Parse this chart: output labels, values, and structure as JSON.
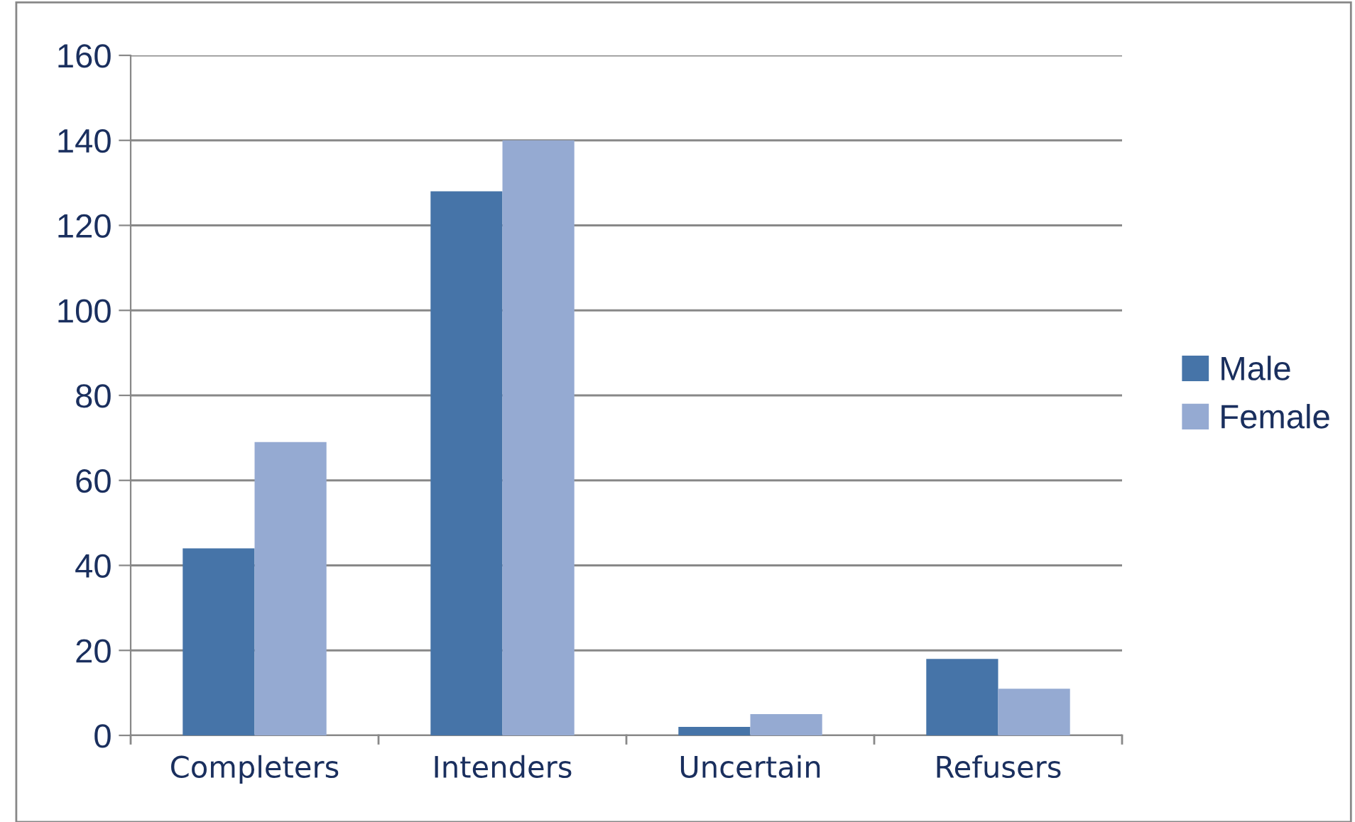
{
  "chart_data": {
    "type": "bar",
    "categories": [
      "Completers",
      "Intenders",
      "Uncertain",
      "Refusers"
    ],
    "series": [
      {
        "name": "Male",
        "color": "#4674a8",
        "values": [
          44,
          128,
          2,
          18
        ]
      },
      {
        "name": "Female",
        "color": "#95aad2",
        "values": [
          69,
          140,
          5,
          11
        ]
      }
    ],
    "ylim": [
      0,
      160
    ],
    "yticks": [
      0,
      20,
      40,
      60,
      80,
      100,
      120,
      140,
      160
    ],
    "grid": "y",
    "legend": "right"
  }
}
